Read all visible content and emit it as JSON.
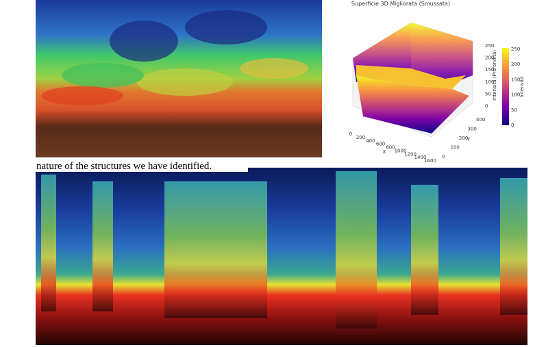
{
  "surface_plot": {
    "title": "Superficie 3D Migliorata (Smussata)",
    "x_label": "X",
    "y_label": "Y",
    "z_label": "Intensità (Profondità)",
    "colorbar_label": "Intensità",
    "x_ticks": [
      0,
      200,
      400,
      600,
      800,
      1000,
      1200,
      1400,
      1600
    ],
    "y_ticks": [
      0,
      100,
      200,
      300,
      400
    ],
    "z_ticks": [
      0,
      50,
      100,
      150,
      200,
      250
    ],
    "colorbar_ticks": [
      0,
      50,
      100,
      150,
      200,
      250
    ]
  },
  "caption": "nature of the structures we have identified."
}
